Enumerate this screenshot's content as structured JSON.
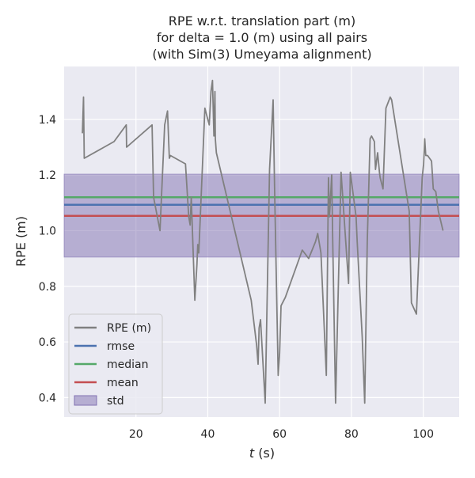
{
  "chart_data": {
    "type": "line",
    "title": [
      "RPE w.r.t. translation part (m)",
      "for delta = 1.0 (m) using all pairs",
      "(with Sim(3) Umeyama alignment)"
    ],
    "xlabel_var": "t",
    "xlabel_unit": " (s)",
    "ylabel": "RPE (m)",
    "xlim": [
      0,
      110
    ],
    "ylim": [
      0.33,
      1.59
    ],
    "xticks": [
      20,
      40,
      60,
      80,
      100
    ],
    "yticks": [
      0.4,
      0.6,
      0.8,
      1.0,
      1.2,
      1.4
    ],
    "ytick_labels": [
      "0.4",
      "0.6",
      "0.8",
      "1.0",
      "1.2",
      "1.4"
    ],
    "grid": true,
    "legend_position": "lower-left",
    "colors": {
      "background": "#eaeaf2",
      "grid": "#ffffff",
      "rpe": "#808080",
      "rmse": "#4c72b0",
      "median": "#55a868",
      "mean": "#c44e52",
      "std_fill": "#8172b2"
    },
    "stats": {
      "rmse": 1.093,
      "median": 1.12,
      "mean": 1.053,
      "std_band": [
        0.905,
        1.203
      ]
    },
    "legend": [
      "RPE (m)",
      "rmse",
      "median",
      "mean",
      "std"
    ],
    "series": [
      {
        "name": "RPE (m)",
        "x": [
          5.1,
          5.4,
          5.6,
          13.9,
          17.3,
          17.4,
          24.5,
          24.9,
          26.7,
          28.0,
          28.8,
          29.3,
          29.6,
          33.8,
          34.7,
          35.1,
          35.4,
          36.4,
          37.0,
          37.2,
          37.5,
          39.2,
          40.4,
          40.9,
          41.3,
          41.7,
          42.0,
          42.1,
          42.4,
          52.1,
          53.6,
          54.0,
          54.3,
          54.7,
          56.0,
          57.2,
          58.2,
          58.6,
          59.6,
          60.0,
          60.4,
          60.8,
          61.6,
          66.3,
          68.1,
          70.0,
          70.6,
          71.5,
          73.0,
          73.6,
          73.9,
          74.5,
          74.8,
          75.6,
          77.1,
          79.2,
          79.7,
          81.3,
          81.6,
          83.0,
          83.7,
          84.4,
          85.2,
          85.6,
          86.4,
          86.7,
          87.3,
          87.8,
          88.0,
          88.8,
          89.6,
          90.8,
          91.2,
          96.1,
          96.7,
          98.1,
          99.7,
          100.1,
          100.4,
          100.7,
          101.2,
          102.3,
          102.8,
          103.5,
          104.2,
          105.5
        ],
        "y": [
          1.35,
          1.48,
          1.26,
          1.32,
          1.38,
          1.3,
          1.38,
          1.12,
          1.0,
          1.38,
          1.43,
          1.26,
          1.27,
          1.24,
          1.05,
          1.02,
          1.12,
          0.75,
          0.88,
          0.95,
          0.92,
          1.44,
          1.38,
          1.5,
          1.54,
          1.34,
          1.5,
          1.33,
          1.28,
          0.75,
          0.59,
          0.52,
          0.65,
          0.68,
          0.38,
          1.22,
          1.47,
          1.16,
          0.48,
          0.56,
          0.73,
          0.74,
          0.76,
          0.93,
          0.9,
          0.96,
          0.99,
          0.92,
          0.48,
          1.19,
          1.05,
          1.2,
          0.96,
          0.38,
          1.21,
          0.81,
          1.21,
          1.05,
          0.96,
          0.62,
          0.38,
          0.96,
          1.33,
          1.34,
          1.32,
          1.22,
          1.28,
          1.21,
          1.19,
          1.15,
          1.44,
          1.48,
          1.47,
          1.07,
          0.74,
          0.7,
          1.19,
          1.24,
          1.33,
          1.27,
          1.27,
          1.25,
          1.15,
          1.14,
          1.07,
          1.0
        ]
      }
    ]
  }
}
